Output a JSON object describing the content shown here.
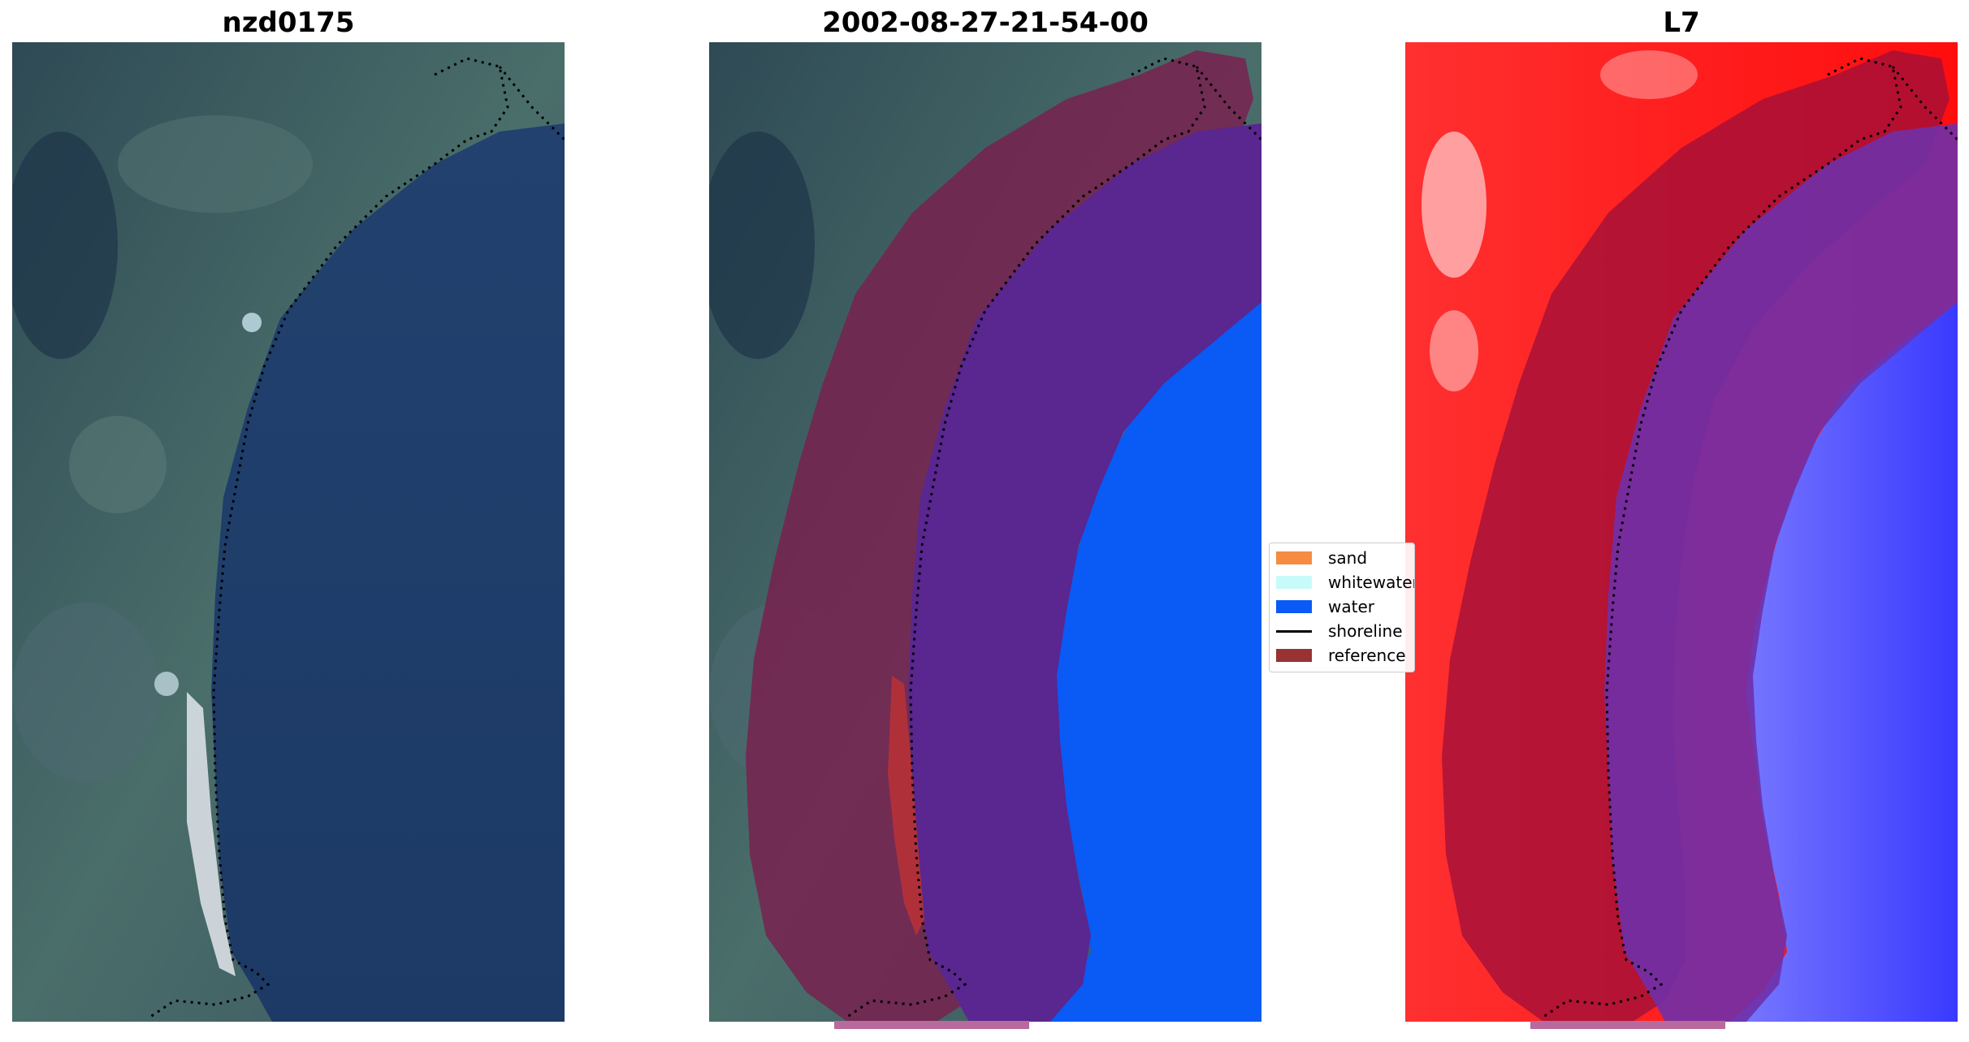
{
  "panels": [
    {
      "title": "nzd0175"
    },
    {
      "title": "2002-08-27-21-54-00"
    },
    {
      "title": "L7"
    }
  ],
  "legend": {
    "items": [
      {
        "label": "sand",
        "color": "#f58c42",
        "kind": "patch"
      },
      {
        "label": "whitewater",
        "color": "#c8fafa",
        "kind": "patch"
      },
      {
        "label": "water",
        "color": "#0a5af5",
        "kind": "patch"
      },
      {
        "label": "shoreline",
        "color": "#000000",
        "kind": "line"
      },
      {
        "label": "reference",
        "color": "#993333",
        "kind": "patch"
      }
    ]
  },
  "colors": {
    "land": "#3a5a5e",
    "sea": "#1f3e6a",
    "beach": "#d9dfe6",
    "buffer": "#7a1f4e",
    "classified_water_overlay": "#5a2690",
    "water_class": "#0a5af5",
    "index_positive": "#ff1010",
    "index_negative": "#4a4aff",
    "reference_bar": "#b86a9c"
  }
}
